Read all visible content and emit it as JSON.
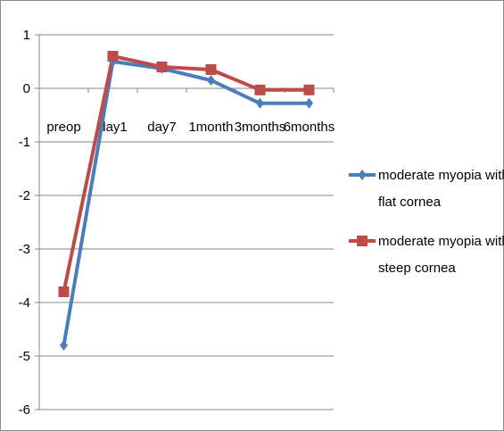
{
  "chart_data": {
    "type": "line",
    "title": "",
    "xlabel": "",
    "ylabel": "",
    "categories": [
      "preop",
      "day1",
      "day7",
      "1month",
      "3months",
      "6months"
    ],
    "ylim": [
      -6,
      1
    ],
    "yticks": [
      1,
      0,
      -1,
      -2,
      -3,
      -4,
      -5,
      -6
    ],
    "grid": true,
    "legend_position": "right",
    "series": [
      {
        "name_lines": [
          "moderate myopia with",
          "flat cornea"
        ],
        "values": [
          -4.8,
          0.5,
          0.37,
          0.15,
          -0.28,
          -0.28
        ],
        "color": "#4a7ebb",
        "marker": "diamond"
      },
      {
        "name_lines": [
          "moderate myopia with",
          "steep cornea"
        ],
        "values": [
          -3.8,
          0.6,
          0.4,
          0.35,
          -0.03,
          -0.03
        ],
        "color": "#be4b48",
        "marker": "square"
      }
    ]
  }
}
